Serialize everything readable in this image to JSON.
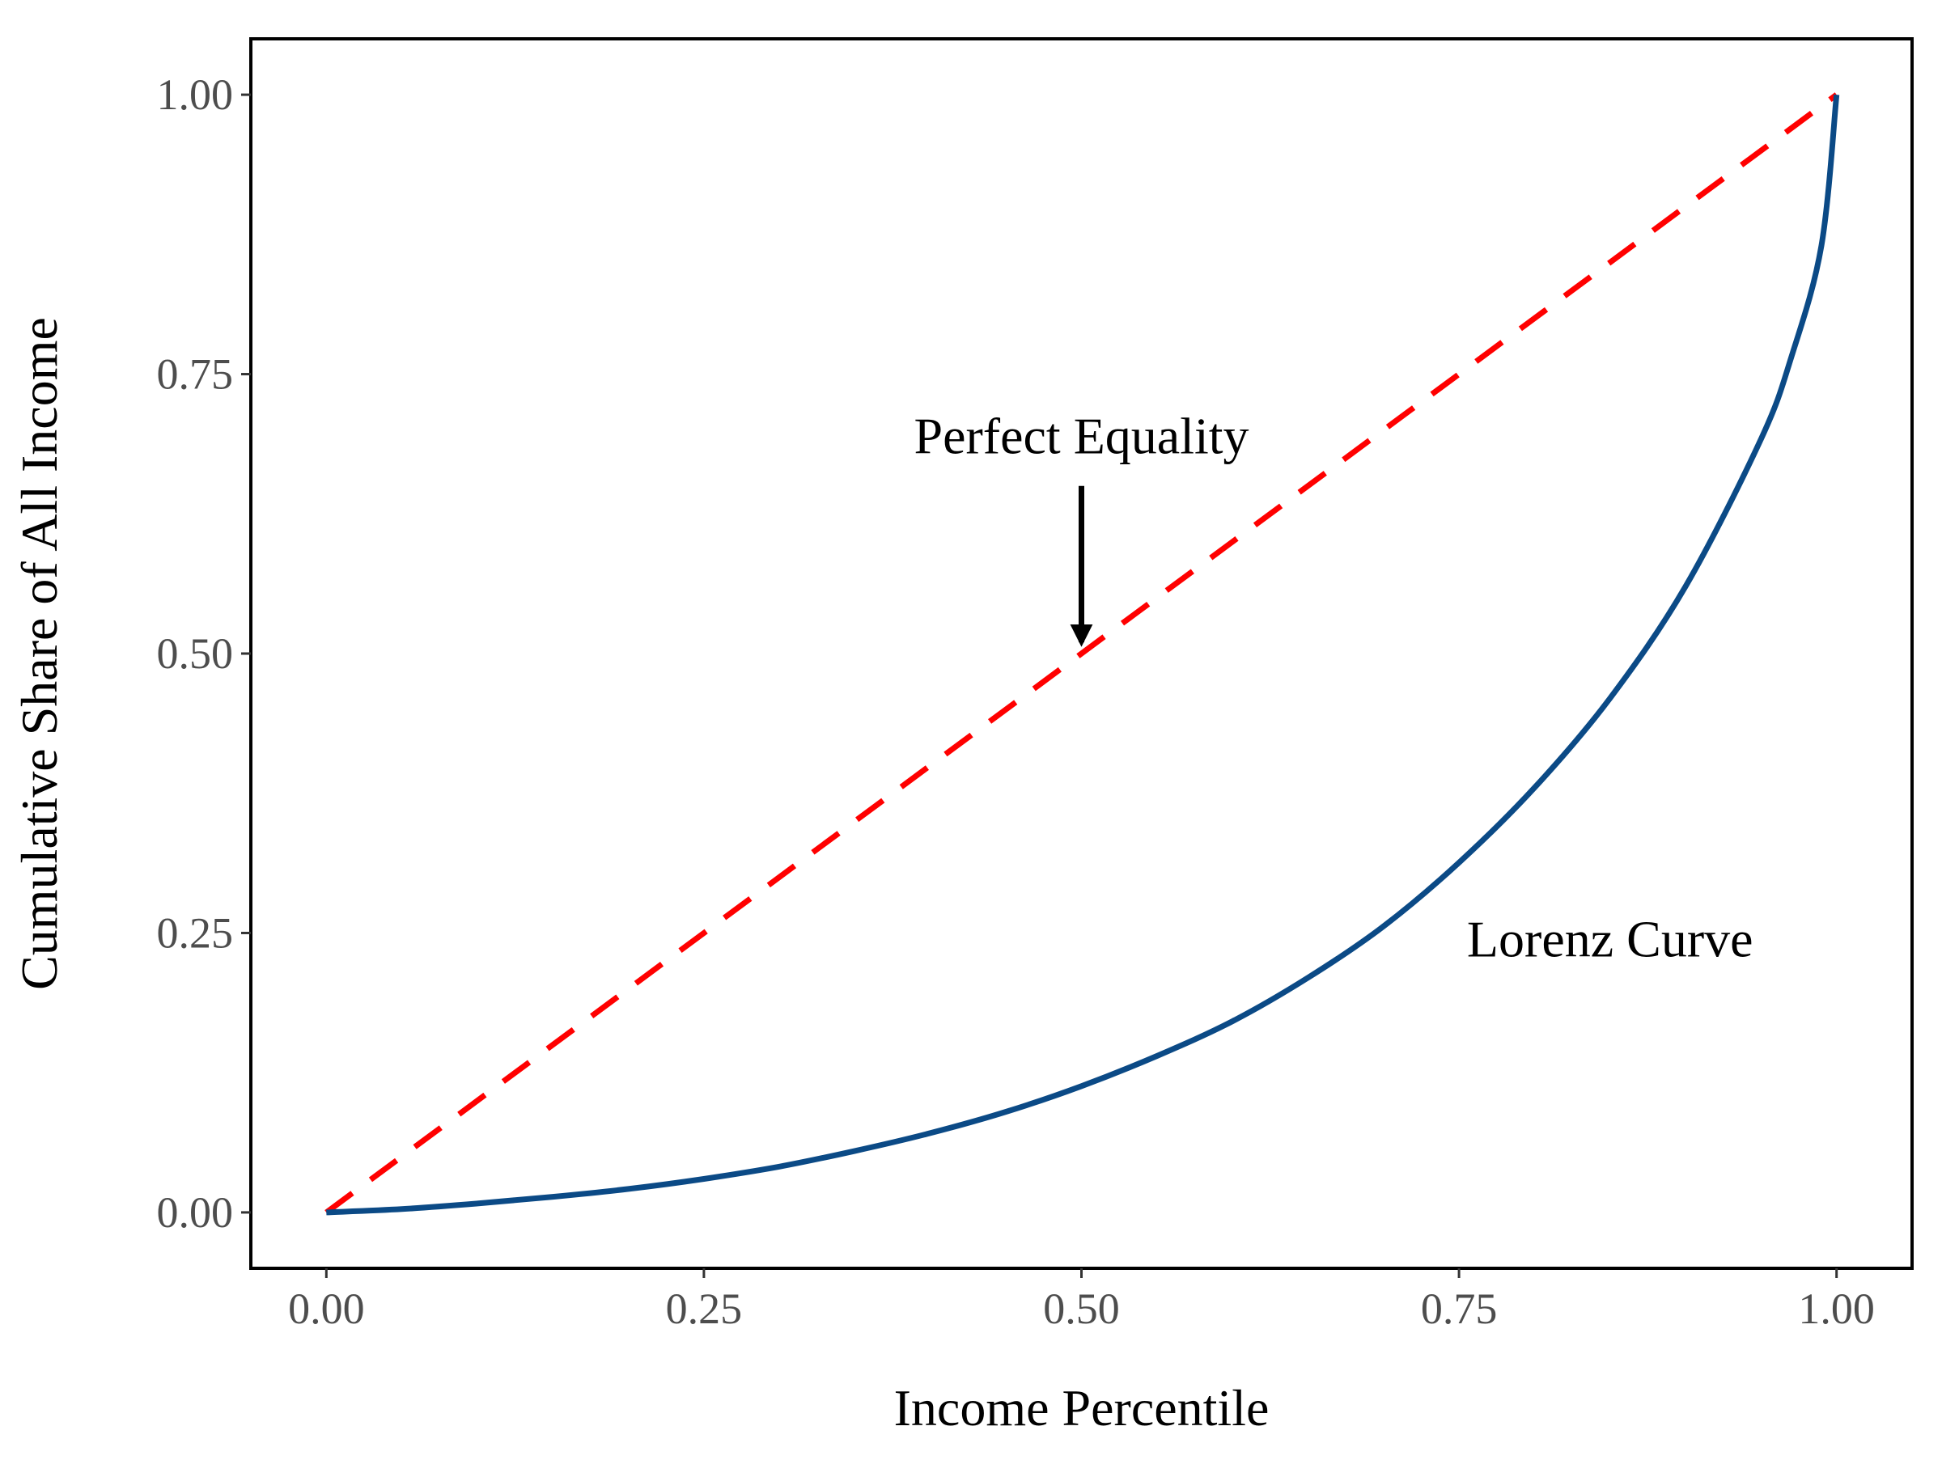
{
  "chart_data": {
    "type": "line",
    "title": "",
    "xlabel": "Income Percentile",
    "ylabel": "Cumulative Share of All Income",
    "xlim": [
      -0.05,
      1.05
    ],
    "ylim": [
      -0.05,
      1.05
    ],
    "x_ticks": [
      0,
      0.25,
      0.5,
      0.75,
      1
    ],
    "x_tick_labels": [
      "0.00",
      "0.25",
      "0.50",
      "0.75",
      "1.00"
    ],
    "y_ticks": [
      0,
      0.25,
      0.5,
      0.75,
      1
    ],
    "y_tick_labels": [
      "0.00",
      "0.25",
      "0.50",
      "0.75",
      "1.00"
    ],
    "grid": false,
    "series": [
      {
        "style": "dashed",
        "color": "#ff0000",
        "x": [
          0,
          1
        ],
        "y": [
          0,
          1
        ]
      },
      {
        "style": "solid",
        "color": "#0b4a86",
        "x": [
          0,
          0.05,
          0.1,
          0.15,
          0.2,
          0.25,
          0.3,
          0.35,
          0.4,
          0.45,
          0.5,
          0.55,
          0.6,
          0.65,
          0.7,
          0.75,
          0.8,
          0.85,
          0.9,
          0.95,
          0.97,
          0.99,
          1
        ],
        "y": [
          0,
          0.003,
          0.008,
          0.014,
          0.021,
          0.03,
          0.041,
          0.055,
          0.071,
          0.09,
          0.113,
          0.14,
          0.171,
          0.21,
          0.256,
          0.313,
          0.38,
          0.46,
          0.56,
          0.692,
          0.765,
          0.865,
          1
        ]
      }
    ],
    "annotations": [
      {
        "text": "Perfect Equality",
        "x": 0.5,
        "y": 0.695,
        "arrow_from": [
          0.5,
          0.65
        ],
        "arrow_to": [
          0.5,
          0.51
        ]
      },
      {
        "text": "Lorenz Curve",
        "x": 0.85,
        "y": 0.245
      }
    ]
  }
}
